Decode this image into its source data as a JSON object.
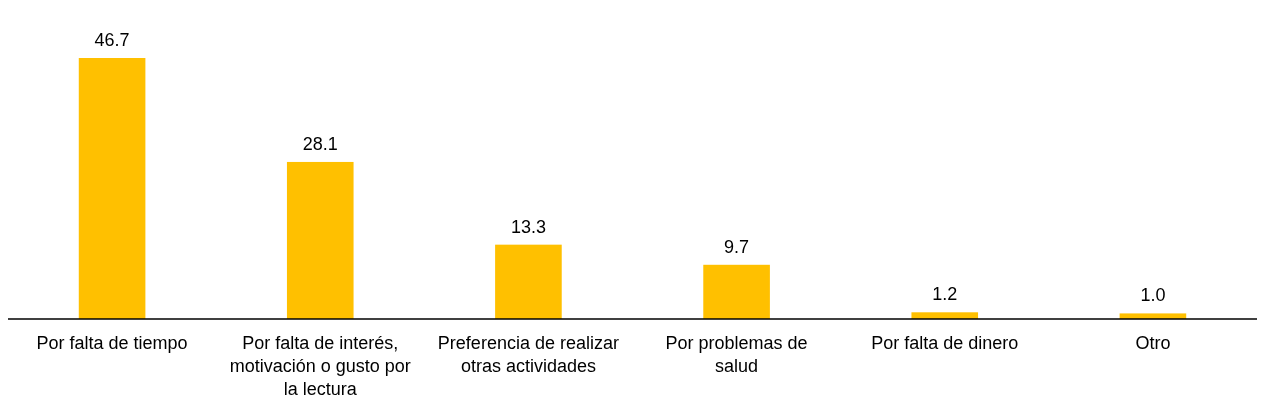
{
  "chart_data": {
    "type": "bar",
    "categories": [
      "Por falta de tiempo",
      "Por falta de interés, motivación o gusto por la lectura",
      "Preferencia de realizar otras actividades",
      "Por problemas de salud",
      "Por falta de dinero",
      "Otro"
    ],
    "values": [
      46.7,
      28.1,
      13.3,
      9.7,
      1.2,
      1.0
    ],
    "value_labels": [
      "46.7",
      "28.1",
      "13.3",
      "9.7",
      "1.2",
      "1.0"
    ],
    "color": "#ffc000",
    "ylim": [
      0,
      46.7
    ],
    "tick_labels": "x"
  }
}
